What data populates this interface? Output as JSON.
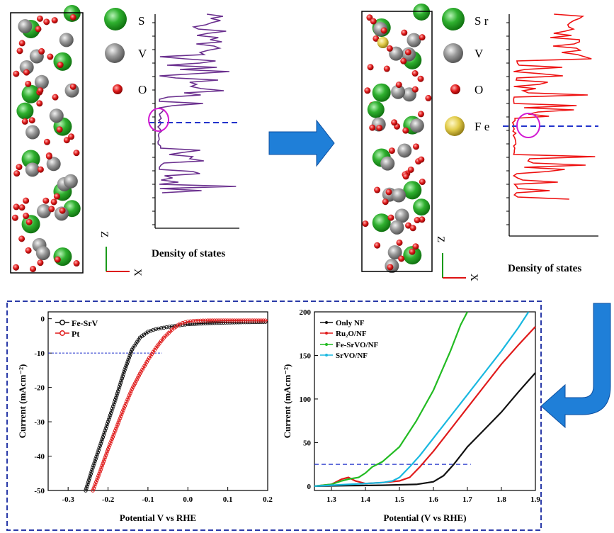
{
  "top_left": {
    "legend": [
      {
        "symbol": "S",
        "color": "#1aa31a"
      },
      {
        "symbol": "V",
        "color": "#8c8c8c"
      },
      {
        "symbol": "O",
        "color": "#dd1111"
      }
    ],
    "axis_z": "Z",
    "axis_x": "X",
    "dos_label": "Density of states",
    "curve_color": "#6a2f8e"
  },
  "top_right": {
    "legend": [
      {
        "symbol": "S r",
        "color": "#1aa31a"
      },
      {
        "symbol": "V",
        "color": "#8c8c8c"
      },
      {
        "symbol": "O",
        "color": "#dd1111"
      },
      {
        "symbol": "F e",
        "color": "#e2cc4a"
      }
    ],
    "axis_z": "Z",
    "axis_x": "X",
    "dos_label": "Density of states",
    "curve_color": "#ee1111"
  },
  "colors": {
    "arrow": "#1f7fd8",
    "frame": "#2a3aa8",
    "fermi": "#2233cc",
    "highlight": "#d21ad2"
  },
  "chart_data": [
    {
      "type": "line",
      "xlabel": "Potential V vs RHE",
      "ylabel": "Current (mAcm⁻²)",
      "xlim": [
        -0.35,
        0.2
      ],
      "ylim": [
        -50,
        2
      ],
      "xticks": [
        -0.3,
        -0.2,
        -0.1,
        0.0,
        0.1,
        0.2
      ],
      "xtick_labels": [
        "-0.3",
        "-0.2",
        "-0.1",
        "0.0",
        "0.1",
        "0.2"
      ],
      "yticks": [
        0,
        -10,
        -20,
        -30,
        -40,
        -50
      ],
      "reference_line": {
        "y": -10,
        "x_end": -0.065
      },
      "legend_placement": "top-left",
      "series": [
        {
          "name": "Fe-SrV",
          "color": "#111111",
          "x": [
            -0.256,
            -0.24,
            -0.22,
            -0.2,
            -0.18,
            -0.16,
            -0.14,
            -0.12,
            -0.1,
            -0.08,
            -0.06,
            -0.04,
            -0.02,
            0.0,
            0.05,
            0.1,
            0.15,
            0.2
          ],
          "y": [
            -50,
            -44,
            -37,
            -30,
            -23,
            -15.5,
            -9,
            -5.5,
            -3.8,
            -3,
            -2.6,
            -2.2,
            -1.9,
            -1.6,
            -1.3,
            -1.1,
            -1.0,
            -0.9
          ]
        },
        {
          "name": "Pt",
          "color": "#e01a1a",
          "x": [
            -0.238,
            -0.22,
            -0.2,
            -0.18,
            -0.16,
            -0.14,
            -0.12,
            -0.1,
            -0.08,
            -0.06,
            -0.04,
            -0.02,
            0.0,
            0.02,
            0.05,
            0.1,
            0.15,
            0.2
          ],
          "y": [
            -50,
            -44.5,
            -38,
            -32,
            -26,
            -20.5,
            -16,
            -12,
            -8.5,
            -5.5,
            -3.2,
            -1.5,
            -0.8,
            -0.6,
            -0.5,
            -0.5,
            -0.5,
            -0.5
          ]
        }
      ]
    },
    {
      "type": "line",
      "xlabel": "Potential (V vs RHE)",
      "ylabel": "Current (mAcm⁻²)",
      "xlim": [
        1.25,
        1.9
      ],
      "ylim": [
        -5,
        200
      ],
      "xticks": [
        1.3,
        1.4,
        1.5,
        1.6,
        1.7,
        1.8,
        1.9
      ],
      "xtick_labels": [
        "1.3",
        "1.4",
        "1.5",
        "1.6",
        "1.7",
        "1.8",
        "1.9"
      ],
      "yticks": [
        0,
        50,
        100,
        150,
        200
      ],
      "reference_line": {
        "y": 25,
        "x_end": 1.71
      },
      "legend_placement": "top-left",
      "series": [
        {
          "name": "Only  NF",
          "color": "#111111",
          "x": [
            1.25,
            1.35,
            1.45,
            1.55,
            1.6,
            1.63,
            1.66,
            1.7,
            1.75,
            1.8,
            1.85,
            1.9
          ],
          "y": [
            0,
            0.5,
            1,
            2,
            5,
            12,
            25,
            45,
            65,
            85,
            108,
            130
          ]
        },
        {
          "name": "Ru₂O/NF",
          "color": "#e01a1a",
          "x": [
            1.25,
            1.3,
            1.33,
            1.35,
            1.37,
            1.4,
            1.45,
            1.5,
            1.53,
            1.56,
            1.6,
            1.65,
            1.7,
            1.75,
            1.8,
            1.85,
            1.9
          ],
          "y": [
            0,
            2,
            8,
            10,
            6,
            3,
            4,
            6,
            10,
            22,
            40,
            65,
            90,
            115,
            140,
            162,
            183
          ]
        },
        {
          "name": "Fe-SrVO/NF",
          "color": "#22bb22",
          "x": [
            1.25,
            1.3,
            1.33,
            1.35,
            1.38,
            1.4,
            1.42,
            1.45,
            1.5,
            1.55,
            1.6,
            1.65,
            1.68,
            1.7
          ],
          "y": [
            0,
            2,
            6,
            8,
            10,
            15,
            22,
            28,
            45,
            75,
            110,
            155,
            185,
            200
          ]
        },
        {
          "name": "SrVO/NF",
          "color": "#19b8e0",
          "x": [
            1.25,
            1.3,
            1.35,
            1.4,
            1.45,
            1.48,
            1.5,
            1.53,
            1.56,
            1.6,
            1.65,
            1.7,
            1.75,
            1.8,
            1.85,
            1.88
          ],
          "y": [
            0,
            1,
            2,
            3,
            4,
            6,
            10,
            22,
            35,
            55,
            80,
            105,
            130,
            155,
            182,
            200
          ]
        }
      ]
    }
  ]
}
